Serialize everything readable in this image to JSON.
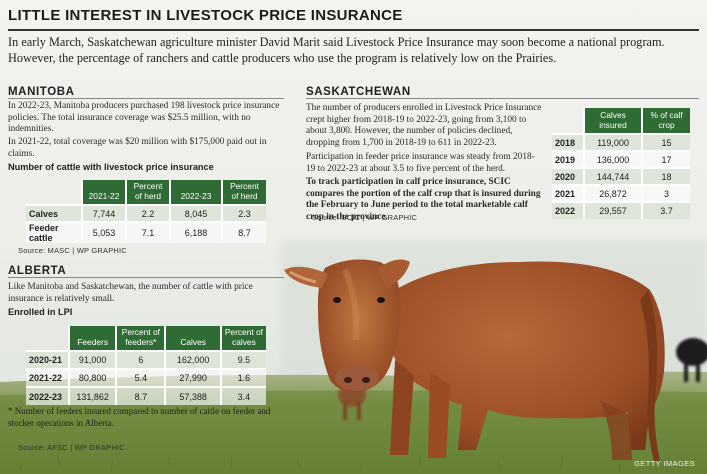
{
  "title": "LITTLE INTEREST IN LIVESTOCK PRICE INSURANCE",
  "intro": "In early March, Saskatchewan agriculture minister David Marit said Livestock Price Insurance may soon become a national program. However, the percentage of ranchers and cattle producers who use the program is relatively low on the Prairies.",
  "manitoba": {
    "heading": "MANITOBA",
    "para1": "In 2022-23, Manitoba producers purchased 198 livestock price insurance policies. The total insurance coverage was $25.5 million, with no indemnities.",
    "para2": "In 2021-22, total coverage was $20 million with $175,000 paid out in claims.",
    "table_title": "Number of cattle with livestock price insurance",
    "columns": [
      "2021-22",
      "Percent of herd",
      "2022-23",
      "Percent of herd"
    ],
    "rows": [
      {
        "label": "Calves",
        "cells": [
          "7,744",
          "2.2",
          "8,045",
          "2.3"
        ]
      },
      {
        "label": "Feeder cattle",
        "cells": [
          "5,053",
          "7.1",
          "6,188",
          "8.7"
        ]
      }
    ],
    "source": "Source: MASC  |  WP GRAPHIC"
  },
  "alberta": {
    "heading": "ALBERTA",
    "para1": "Like Manitoba and Saskatchewan, the number of cattle with price insurance is relatively small.",
    "table_title": "Enrolled in LPI",
    "columns": [
      "Feeders",
      "Percent of feeders*",
      "Calves",
      "Percent of calves"
    ],
    "rows": [
      {
        "label": "2020-21",
        "cells": [
          "91,000",
          "6",
          "162,000",
          "9.5"
        ]
      },
      {
        "label": "2021-22",
        "cells": [
          "80,800",
          "5.4",
          "27,990",
          "1.6"
        ]
      },
      {
        "label": "2022-23",
        "cells": [
          "131,862",
          "8.7",
          "57,388",
          "3.4"
        ]
      }
    ],
    "footnote": "* Number of feeders insured compared to number of cattle on feeder and stocker operations in Alberta.",
    "source": "Source: AFSC  |  WP GRAPHIC"
  },
  "saskatchewan": {
    "heading": "SASKATCHEWAN",
    "para1": "The number of producers enrolled in Livestock Price Insurance crept higher from 2018-19 to 2022-23, going from 3,100 to about 3,800. However, the number of policies declined, dropping from 1,700 in 2018-19 to 611 in 2022-23.",
    "para2": "Participation in feeder price insurance was steady from 2018-19 to 2022-23 at about 3.5 to five percent of the herd.",
    "para3": "To track participation in calf price insurance, SCIC compares the portion of the calf crop that is insured during the February to June period to the total marketable calf crop in the province.",
    "columns": [
      "Calves insured",
      "% of calf crop"
    ],
    "rows": [
      {
        "label": "2018",
        "cells": [
          "119,000",
          "15"
        ]
      },
      {
        "label": "2019",
        "cells": [
          "136,000",
          "17"
        ]
      },
      {
        "label": "2020",
        "cells": [
          "144,744",
          "18"
        ]
      },
      {
        "label": "2021",
        "cells": [
          "26,872",
          "3"
        ]
      },
      {
        "label": "2022",
        "cells": [
          "29,557",
          "3.7"
        ]
      }
    ],
    "source": "Source: SCIC  |  WP GRAPHIC"
  },
  "photo_credit": "GETTY IMAGES",
  "colors": {
    "table_header": "#2f6b35",
    "row_shade": "#dce4d6",
    "cow": "#a4552a",
    "grass": "#6e8a3a"
  },
  "icons": [
    "cow-photo"
  ]
}
